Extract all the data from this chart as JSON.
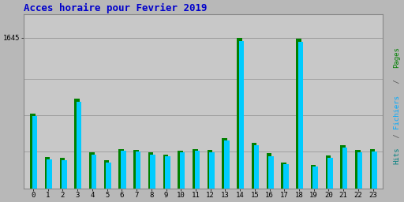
{
  "title": "Acces horaire pour Fevrier 2019",
  "hours": [
    0,
    1,
    2,
    3,
    4,
    5,
    6,
    7,
    8,
    9,
    10,
    11,
    12,
    13,
    14,
    15,
    16,
    17,
    18,
    19,
    20,
    21,
    22,
    23
  ],
  "pages": [
    820,
    340,
    330,
    980,
    390,
    310,
    430,
    420,
    390,
    370,
    410,
    430,
    420,
    550,
    1645,
    500,
    385,
    285,
    1640,
    255,
    360,
    475,
    420,
    430
  ],
  "hits": [
    790,
    320,
    310,
    950,
    365,
    285,
    410,
    405,
    370,
    350,
    390,
    410,
    395,
    525,
    1610,
    475,
    355,
    265,
    1600,
    235,
    335,
    445,
    395,
    405
  ],
  "ylim": [
    0,
    1900
  ],
  "ytick_val": 1645,
  "ytick_label": "1645",
  "bar_width": 0.35,
  "color_pages": "#008000",
  "color_hits": "#00CCFF",
  "bg_color": "#B8B8B8",
  "plot_bg": "#C8C8C8",
  "title_color": "#0000CC",
  "grid_color": "#999999",
  "ylabel_pages_color": "#008000",
  "ylabel_fichiers_color": "#00AAFF",
  "ylabel_hits_color": "#008080",
  "font": "monospace",
  "title_fontsize": 9,
  "tick_fontsize": 6.5
}
